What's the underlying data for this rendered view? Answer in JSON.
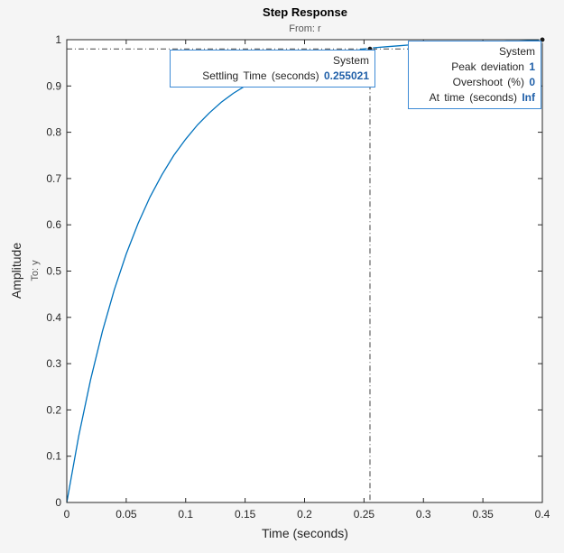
{
  "chart_data": {
    "type": "line",
    "title": "Step Response",
    "subtitle": "From: r",
    "xlabel": "Time (seconds)",
    "ylabel": "Amplitude",
    "ylabel2": "To: y",
    "xlim": [
      0,
      0.4
    ],
    "ylim": [
      0,
      1
    ],
    "xticks": [
      "0",
      "0.05",
      "0.1",
      "0.15",
      "0.2",
      "0.25",
      "0.3",
      "0.35",
      "0.4"
    ],
    "xtick_values": [
      0,
      0.05,
      0.1,
      0.15,
      0.2,
      0.25,
      0.3,
      0.35,
      0.4
    ],
    "yticks": [
      "0",
      "0.1",
      "0.2",
      "0.3",
      "0.4",
      "0.5",
      "0.6",
      "0.7",
      "0.8",
      "0.9",
      "1"
    ],
    "ytick_values": [
      0,
      0.1,
      0.2,
      0.3,
      0.4,
      0.5,
      0.6,
      0.7,
      0.8,
      0.9,
      1
    ],
    "grid": false,
    "series": [
      {
        "name": "System",
        "color": "#0072bd",
        "x": [
          0,
          0.01,
          0.02,
          0.03,
          0.04,
          0.05,
          0.06,
          0.07,
          0.08,
          0.09,
          0.1,
          0.11,
          0.12,
          0.13,
          0.14,
          0.15,
          0.16,
          0.17,
          0.18,
          0.19,
          0.2,
          0.21,
          0.22,
          0.23,
          0.24,
          0.25,
          0.26,
          0.27,
          0.28,
          0.29,
          0.3,
          0.31,
          0.32,
          0.33,
          0.34,
          0.35,
          0.36,
          0.37,
          0.38,
          0.39,
          0.4
        ],
        "y": [
          0,
          0.143,
          0.265,
          0.37,
          0.46,
          0.537,
          0.603,
          0.66,
          0.708,
          0.75,
          0.785,
          0.816,
          0.842,
          0.865,
          0.884,
          0.9,
          0.914,
          0.926,
          0.937,
          0.946,
          0.954,
          0.96,
          0.966,
          0.971,
          0.975,
          0.98,
          0.983,
          0.985,
          0.987,
          0.989,
          0.99,
          0.992,
          0.993,
          0.994,
          0.995,
          0.996,
          0.996,
          0.997,
          0.997,
          0.998,
          0.998
        ]
      }
    ],
    "settling_band_y": 0.98,
    "settling": {
      "x": 0.255021,
      "y": 0.98,
      "system": "System",
      "label": "Settling Time (seconds)",
      "value": "0.255021"
    },
    "peak": {
      "x": 0.4,
      "y": 1,
      "system": "System",
      "deviation_label": "Peak deviation",
      "deviation_value": "1",
      "overshoot_label": "Overshoot (%)",
      "overshoot_value": "0",
      "time_label": "At time (seconds)",
      "time_value": "Inf"
    }
  }
}
